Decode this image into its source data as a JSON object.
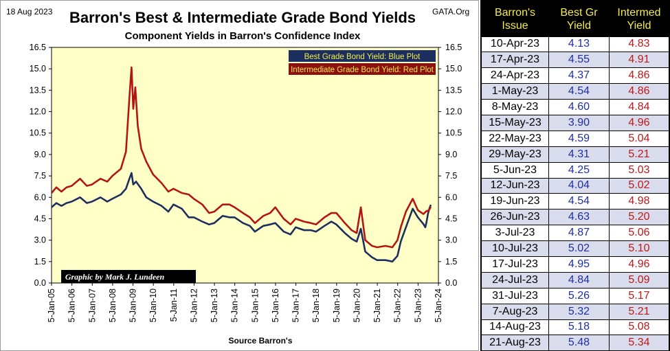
{
  "header": {
    "date": "18 Aug 2023",
    "title": "Barron's Best & Intermediate Grade Bond Yields",
    "source_tag": "GATA.Org",
    "subtitle": "Component Yields in Barron's Confidence Index"
  },
  "footer": {
    "source": "Source Barron's",
    "credit": "Graphic by Mark J. Lundeen"
  },
  "legend": {
    "best": "Best Grade Bond Yield: Blue Plot",
    "intermediate": "Intermediate Grade Bond Yield: Red Plot"
  },
  "colors": {
    "plot_background": "#ffffc8",
    "best_line": "#1c2e5e",
    "intermediate_line": "#b41414",
    "legend_best_bg": "#1c2e5e",
    "legend_best_text": "#f5ec4a",
    "legend_inter_bg": "#8b1010",
    "legend_inter_text": "#f5ec4a",
    "table_header_text": "#f5ec4a"
  },
  "chart_data": {
    "type": "line",
    "x_ticks": [
      "5-Jan-05",
      "5-Jan-06",
      "5-Jan-07",
      "5-Jan-08",
      "5-Jan-09",
      "5-Jan-10",
      "5-Jan-11",
      "5-Jan-12",
      "5-Jan-13",
      "5-Jan-14",
      "5-Jan-15",
      "5-Jan-16",
      "5-Jan-17",
      "5-Jan-18",
      "5-Jan-19",
      "5-Jan-20",
      "5-Jan-21",
      "5-Jan-22",
      "5-Jan-23",
      "5-Jan-24"
    ],
    "y_ticks": [
      "16.5",
      "15.0",
      "13.5",
      "12.0",
      "10.5",
      "9.0",
      "7.5",
      "6.0",
      "4.5",
      "3.0",
      "1.5",
      "0.0"
    ],
    "ylim": [
      0,
      16.5
    ],
    "xlim": [
      "2005-01-05",
      "2024-01-05"
    ],
    "grid": false,
    "series": [
      {
        "name": "Best Grade Bond Yield",
        "points": [
          [
            "2005-01-05",
            5.3
          ],
          [
            "2005-04-01",
            5.6
          ],
          [
            "2005-07-01",
            5.4
          ],
          [
            "2005-10-01",
            5.6
          ],
          [
            "2006-01-01",
            5.7
          ],
          [
            "2006-06-01",
            6.0
          ],
          [
            "2006-10-01",
            5.6
          ],
          [
            "2007-01-01",
            5.7
          ],
          [
            "2007-06-01",
            6.0
          ],
          [
            "2007-10-01",
            5.7
          ],
          [
            "2008-01-01",
            5.9
          ],
          [
            "2008-06-01",
            6.2
          ],
          [
            "2008-09-01",
            6.6
          ],
          [
            "2008-11-01",
            7.3
          ],
          [
            "2008-12-10",
            7.7
          ],
          [
            "2009-01-10",
            6.9
          ],
          [
            "2009-03-01",
            7.1
          ],
          [
            "2009-06-01",
            6.6
          ],
          [
            "2009-09-01",
            6.0
          ],
          [
            "2010-01-01",
            5.7
          ],
          [
            "2010-06-01",
            5.4
          ],
          [
            "2010-10-01",
            5.0
          ],
          [
            "2011-01-01",
            5.5
          ],
          [
            "2011-06-01",
            5.2
          ],
          [
            "2011-10-01",
            4.6
          ],
          [
            "2012-01-01",
            4.6
          ],
          [
            "2012-06-01",
            4.3
          ],
          [
            "2012-10-01",
            4.1
          ],
          [
            "2013-01-01",
            4.2
          ],
          [
            "2013-06-01",
            4.7
          ],
          [
            "2013-10-01",
            4.6
          ],
          [
            "2014-01-01",
            4.6
          ],
          [
            "2014-06-01",
            4.2
          ],
          [
            "2014-10-01",
            4.0
          ],
          [
            "2015-01-01",
            3.6
          ],
          [
            "2015-06-01",
            4.0
          ],
          [
            "2015-10-01",
            4.1
          ],
          [
            "2016-01-01",
            4.2
          ],
          [
            "2016-06-01",
            3.6
          ],
          [
            "2016-10-01",
            3.4
          ],
          [
            "2017-01-01",
            3.9
          ],
          [
            "2017-06-01",
            3.7
          ],
          [
            "2017-10-01",
            3.7
          ],
          [
            "2018-01-01",
            3.6
          ],
          [
            "2018-06-01",
            4.0
          ],
          [
            "2018-10-01",
            4.3
          ],
          [
            "2019-01-01",
            4.1
          ],
          [
            "2019-06-01",
            3.5
          ],
          [
            "2019-10-01",
            3.1
          ],
          [
            "2020-01-01",
            2.9
          ],
          [
            "2020-03-15",
            3.8
          ],
          [
            "2020-06-01",
            2.2
          ],
          [
            "2020-10-01",
            1.8
          ],
          [
            "2021-01-01",
            1.6
          ],
          [
            "2021-06-01",
            1.6
          ],
          [
            "2021-10-01",
            1.5
          ],
          [
            "2022-01-01",
            1.9
          ],
          [
            "2022-03-01",
            2.9
          ],
          [
            "2022-06-01",
            3.9
          ],
          [
            "2022-10-01",
            5.2
          ],
          [
            "2023-01-01",
            4.6
          ],
          [
            "2023-04-10",
            4.13
          ],
          [
            "2023-05-15",
            3.9
          ],
          [
            "2023-06-05",
            4.25
          ],
          [
            "2023-07-03",
            4.87
          ],
          [
            "2023-07-31",
            5.26
          ],
          [
            "2023-08-21",
            5.48
          ]
        ]
      },
      {
        "name": "Intermediate Grade Bond Yield",
        "points": [
          [
            "2005-01-05",
            6.3
          ],
          [
            "2005-04-01",
            6.7
          ],
          [
            "2005-07-01",
            6.4
          ],
          [
            "2005-10-01",
            6.7
          ],
          [
            "2006-01-01",
            6.8
          ],
          [
            "2006-06-01",
            7.3
          ],
          [
            "2006-10-01",
            6.8
          ],
          [
            "2007-01-01",
            6.9
          ],
          [
            "2007-06-01",
            7.3
          ],
          [
            "2007-10-01",
            7.1
          ],
          [
            "2008-01-01",
            7.5
          ],
          [
            "2008-06-01",
            8.0
          ],
          [
            "2008-09-01",
            9.2
          ],
          [
            "2008-11-01",
            13.0
          ],
          [
            "2008-12-10",
            15.1
          ],
          [
            "2009-01-10",
            12.2
          ],
          [
            "2009-02-15",
            13.7
          ],
          [
            "2009-04-01",
            11.0
          ],
          [
            "2009-06-01",
            9.4
          ],
          [
            "2009-09-01",
            8.5
          ],
          [
            "2010-01-01",
            7.6
          ],
          [
            "2010-06-01",
            7.0
          ],
          [
            "2010-10-01",
            6.4
          ],
          [
            "2011-01-01",
            6.6
          ],
          [
            "2011-06-01",
            6.3
          ],
          [
            "2011-10-01",
            6.2
          ],
          [
            "2012-01-01",
            5.9
          ],
          [
            "2012-06-01",
            5.5
          ],
          [
            "2012-10-01",
            4.9
          ],
          [
            "2013-01-01",
            5.0
          ],
          [
            "2013-06-01",
            5.5
          ],
          [
            "2013-10-01",
            5.5
          ],
          [
            "2014-01-01",
            5.3
          ],
          [
            "2014-06-01",
            4.9
          ],
          [
            "2014-10-01",
            4.6
          ],
          [
            "2015-01-01",
            4.2
          ],
          [
            "2015-06-01",
            4.7
          ],
          [
            "2015-10-01",
            4.9
          ],
          [
            "2016-01-01",
            5.3
          ],
          [
            "2016-06-01",
            4.5
          ],
          [
            "2016-10-01",
            4.1
          ],
          [
            "2017-01-01",
            4.5
          ],
          [
            "2017-06-01",
            4.3
          ],
          [
            "2017-10-01",
            4.2
          ],
          [
            "2018-01-01",
            4.1
          ],
          [
            "2018-06-01",
            4.6
          ],
          [
            "2018-10-01",
            4.9
          ],
          [
            "2019-01-01",
            4.9
          ],
          [
            "2019-06-01",
            4.2
          ],
          [
            "2019-10-01",
            3.7
          ],
          [
            "2020-01-01",
            3.5
          ],
          [
            "2020-03-15",
            5.3
          ],
          [
            "2020-06-01",
            3.0
          ],
          [
            "2020-10-01",
            2.6
          ],
          [
            "2021-01-01",
            2.5
          ],
          [
            "2021-06-01",
            2.6
          ],
          [
            "2021-10-01",
            2.5
          ],
          [
            "2022-01-01",
            3.0
          ],
          [
            "2022-03-01",
            3.9
          ],
          [
            "2022-06-01",
            5.0
          ],
          [
            "2022-10-01",
            5.9
          ],
          [
            "2023-01-01",
            5.1
          ],
          [
            "2023-04-10",
            4.83
          ],
          [
            "2023-05-15",
            4.96
          ],
          [
            "2023-06-05",
            5.03
          ],
          [
            "2023-07-03",
            5.06
          ],
          [
            "2023-07-31",
            5.17
          ],
          [
            "2023-08-21",
            5.34
          ]
        ]
      }
    ]
  },
  "table": {
    "headers": [
      "Barron's Issue",
      "Best Gr Yield",
      "Intermed Yield"
    ],
    "rows": [
      [
        "10-Apr-23",
        "4.13",
        "4.83"
      ],
      [
        "17-Apr-23",
        "4.55",
        "4.91"
      ],
      [
        "24-Apr-23",
        "4.37",
        "4.86"
      ],
      [
        "1-May-23",
        "4.54",
        "4.86"
      ],
      [
        "8-May-23",
        "4.60",
        "4.84"
      ],
      [
        "15-May-23",
        "3.90",
        "4.96"
      ],
      [
        "22-May-23",
        "4.59",
        "5.04"
      ],
      [
        "29-May-23",
        "4.31",
        "5.21"
      ],
      [
        "5-Jun-23",
        "4.25",
        "5.03"
      ],
      [
        "12-Jun-23",
        "4.04",
        "5.02"
      ],
      [
        "19-Jun-23",
        "4.54",
        "4.98"
      ],
      [
        "26-Jun-23",
        "4.63",
        "5.20"
      ],
      [
        "3-Jul-23",
        "4.87",
        "5.06"
      ],
      [
        "10-Jul-23",
        "5.02",
        "5.10"
      ],
      [
        "17-Jul-23",
        "4.95",
        "4.96"
      ],
      [
        "24-Jul-23",
        "4.84",
        "5.09"
      ],
      [
        "31-Jul-23",
        "5.26",
        "5.17"
      ],
      [
        "7-Aug-23",
        "5.32",
        "5.21"
      ],
      [
        "14-Aug-23",
        "5.18",
        "5.08"
      ],
      [
        "21-Aug-23",
        "5.48",
        "5.34"
      ]
    ]
  }
}
